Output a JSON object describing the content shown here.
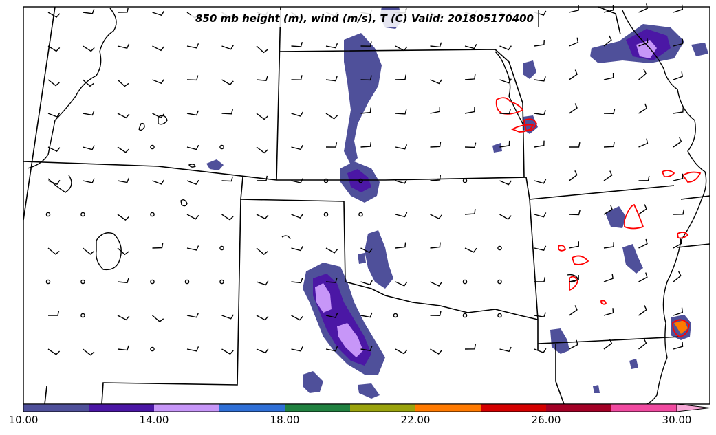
{
  "title": "850 mb height (m), wind (m/s), T (C) Valid: 201805170400",
  "colorbar": {
    "colors": [
      "#4f509a",
      "#4b17a5",
      "#c796f8",
      "#2f6fd6",
      "#218140",
      "#9aa30d",
      "#ff7a00",
      "#d40000",
      "#a30026",
      "#f04aa0"
    ],
    "extend_color": "#f7a8d7",
    "ticks": [
      "10.00",
      "14.00",
      "18.00",
      "22.00",
      "26.00",
      "30.00"
    ]
  },
  "legend_colors": {
    "contour_temperature": "#ff0000",
    "contour_height": "#000000",
    "outline": "#000000"
  },
  "icons": [
    "wind-barb-icon",
    "calm-wind-circle-icon"
  ]
}
